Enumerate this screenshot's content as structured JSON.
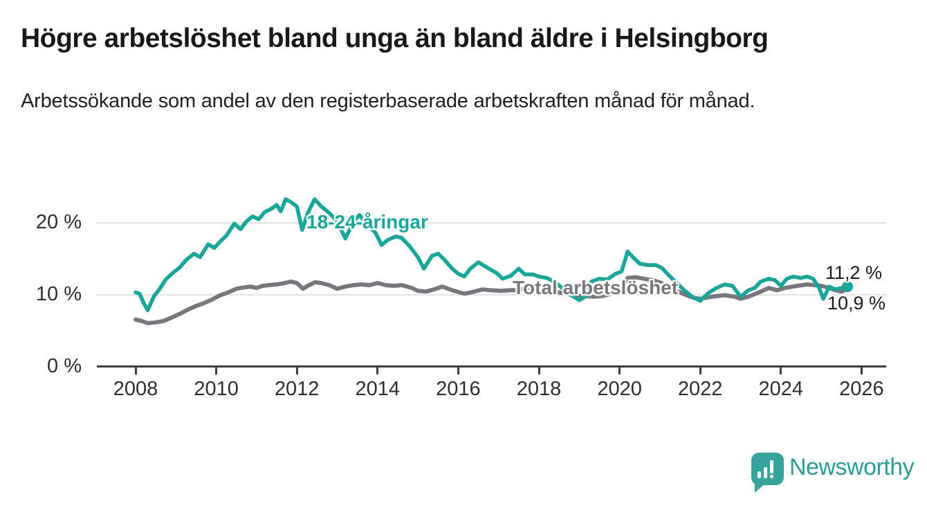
{
  "title": "Högre arbetslöshet bland unga än bland äldre i Helsingborg",
  "subtitle": "Arbetssökande som andel av den registerbaserade arbetskraften månad för månad.",
  "branding": {
    "name": "Newsworthy",
    "icon": "bar-chart-speech-bubble-icon",
    "color": "#2b9d97"
  },
  "chart_data": {
    "type": "line",
    "title": "Högre arbetslöshet bland unga än bland äldre i Helsingborg",
    "xlabel": "",
    "ylabel": "",
    "x_range": [
      2007.8,
      2026.6
    ],
    "ylim": [
      0,
      25
    ],
    "grid": "horizontal",
    "legend_position": "inline-labels",
    "x_ticks": [
      2008,
      2010,
      2012,
      2014,
      2016,
      2018,
      2020,
      2022,
      2024,
      2026
    ],
    "y_ticks": [
      {
        "value": 0,
        "label": "0 %"
      },
      {
        "value": 10,
        "label": "10 %"
      },
      {
        "value": 20,
        "label": "20 %"
      }
    ],
    "unit": "percent",
    "series": [
      {
        "name": "18-24-åringar",
        "color": "#1aa59a",
        "stroke_width": 5.5,
        "end_dot": true,
        "end_label": "11,2 %",
        "end_value": 11.2,
        "points": [
          [
            2008.0,
            10.4
          ],
          [
            2008.1,
            10.2
          ],
          [
            2008.2,
            8.9
          ],
          [
            2008.3,
            7.9
          ],
          [
            2008.45,
            9.8
          ],
          [
            2008.6,
            10.9
          ],
          [
            2008.75,
            12.2
          ],
          [
            2008.9,
            13.0
          ],
          [
            2009.1,
            13.9
          ],
          [
            2009.25,
            14.9
          ],
          [
            2009.45,
            15.8
          ],
          [
            2009.6,
            15.3
          ],
          [
            2009.8,
            17.1
          ],
          [
            2009.95,
            16.6
          ],
          [
            2010.1,
            17.5
          ],
          [
            2010.25,
            18.3
          ],
          [
            2010.45,
            20.0
          ],
          [
            2010.6,
            19.2
          ],
          [
            2010.75,
            20.3
          ],
          [
            2010.9,
            21.0
          ],
          [
            2011.05,
            20.6
          ],
          [
            2011.2,
            21.6
          ],
          [
            2011.35,
            22.0
          ],
          [
            2011.5,
            22.6
          ],
          [
            2011.6,
            21.7
          ],
          [
            2011.72,
            23.4
          ],
          [
            2011.85,
            23.0
          ],
          [
            2012.0,
            22.4
          ],
          [
            2012.13,
            19.1
          ],
          [
            2012.28,
            21.6
          ],
          [
            2012.44,
            23.4
          ],
          [
            2012.6,
            22.4
          ],
          [
            2012.8,
            21.5
          ],
          [
            2013.0,
            20.3
          ],
          [
            2013.2,
            17.9
          ],
          [
            2013.4,
            20.2
          ],
          [
            2013.55,
            21.2
          ],
          [
            2013.75,
            19.8
          ],
          [
            2013.95,
            18.7
          ],
          [
            2014.1,
            17.0
          ],
          [
            2014.25,
            17.7
          ],
          [
            2014.45,
            18.2
          ],
          [
            2014.6,
            18.0
          ],
          [
            2014.8,
            16.8
          ],
          [
            2015.0,
            15.3
          ],
          [
            2015.15,
            13.7
          ],
          [
            2015.35,
            15.5
          ],
          [
            2015.5,
            15.8
          ],
          [
            2015.65,
            15.0
          ],
          [
            2015.85,
            13.7
          ],
          [
            2016.0,
            13.0
          ],
          [
            2016.15,
            12.6
          ],
          [
            2016.3,
            13.7
          ],
          [
            2016.5,
            14.6
          ],
          [
            2016.7,
            13.9
          ],
          [
            2016.95,
            13.1
          ],
          [
            2017.1,
            12.3
          ],
          [
            2017.3,
            12.7
          ],
          [
            2017.5,
            13.7
          ],
          [
            2017.65,
            12.9
          ],
          [
            2017.85,
            12.9
          ],
          [
            2018.0,
            12.6
          ],
          [
            2018.2,
            12.4
          ],
          [
            2018.4,
            11.8
          ],
          [
            2018.6,
            10.9
          ],
          [
            2018.8,
            10.0
          ],
          [
            2019.0,
            9.3
          ],
          [
            2019.15,
            9.8
          ],
          [
            2019.3,
            11.9
          ],
          [
            2019.5,
            12.3
          ],
          [
            2019.7,
            12.2
          ],
          [
            2019.9,
            13.0
          ],
          [
            2020.05,
            13.3
          ],
          [
            2020.2,
            16.1
          ],
          [
            2020.35,
            15.2
          ],
          [
            2020.5,
            14.4
          ],
          [
            2020.7,
            14.2
          ],
          [
            2020.9,
            14.2
          ],
          [
            2021.05,
            13.8
          ],
          [
            2021.2,
            12.9
          ],
          [
            2021.4,
            11.8
          ],
          [
            2021.6,
            10.7
          ],
          [
            2021.8,
            9.8
          ],
          [
            2022.0,
            9.2
          ],
          [
            2022.2,
            10.3
          ],
          [
            2022.4,
            11.0
          ],
          [
            2022.6,
            11.5
          ],
          [
            2022.8,
            11.3
          ],
          [
            2023.0,
            9.8
          ],
          [
            2023.2,
            10.7
          ],
          [
            2023.35,
            11.0
          ],
          [
            2023.5,
            11.9
          ],
          [
            2023.7,
            12.3
          ],
          [
            2023.85,
            12.1
          ],
          [
            2024.0,
            11.3
          ],
          [
            2024.15,
            12.3
          ],
          [
            2024.3,
            12.6
          ],
          [
            2024.5,
            12.4
          ],
          [
            2024.65,
            12.6
          ],
          [
            2024.8,
            12.3
          ],
          [
            2024.95,
            11.0
          ],
          [
            2025.05,
            9.5
          ],
          [
            2025.2,
            11.2
          ],
          [
            2025.35,
            10.8
          ],
          [
            2025.5,
            11.0
          ],
          [
            2025.65,
            11.2
          ]
        ]
      },
      {
        "name": "Total arbetslöshet",
        "color": "#77777d",
        "stroke_width": 6,
        "end_dot": false,
        "end_label": "10,9 %",
        "end_value": 10.9,
        "points": [
          [
            2008.0,
            6.6
          ],
          [
            2008.15,
            6.4
          ],
          [
            2008.3,
            6.1
          ],
          [
            2008.5,
            6.2
          ],
          [
            2008.7,
            6.4
          ],
          [
            2008.9,
            6.9
          ],
          [
            2009.1,
            7.4
          ],
          [
            2009.3,
            8.0
          ],
          [
            2009.5,
            8.5
          ],
          [
            2009.7,
            8.9
          ],
          [
            2009.9,
            9.4
          ],
          [
            2010.1,
            10.0
          ],
          [
            2010.3,
            10.4
          ],
          [
            2010.5,
            10.9
          ],
          [
            2010.7,
            11.1
          ],
          [
            2010.85,
            11.2
          ],
          [
            2011.0,
            11.0
          ],
          [
            2011.15,
            11.3
          ],
          [
            2011.3,
            11.4
          ],
          [
            2011.5,
            11.5
          ],
          [
            2011.7,
            11.7
          ],
          [
            2011.85,
            11.9
          ],
          [
            2012.0,
            11.7
          ],
          [
            2012.15,
            10.9
          ],
          [
            2012.3,
            11.4
          ],
          [
            2012.45,
            11.8
          ],
          [
            2012.6,
            11.7
          ],
          [
            2012.8,
            11.4
          ],
          [
            2013.0,
            10.9
          ],
          [
            2013.2,
            11.2
          ],
          [
            2013.4,
            11.4
          ],
          [
            2013.6,
            11.5
          ],
          [
            2013.8,
            11.4
          ],
          [
            2014.0,
            11.7
          ],
          [
            2014.2,
            11.4
          ],
          [
            2014.4,
            11.3
          ],
          [
            2014.6,
            11.4
          ],
          [
            2014.85,
            11.0
          ],
          [
            2015.0,
            10.6
          ],
          [
            2015.2,
            10.5
          ],
          [
            2015.4,
            10.8
          ],
          [
            2015.6,
            11.2
          ],
          [
            2015.85,
            10.7
          ],
          [
            2016.15,
            10.2
          ],
          [
            2016.4,
            10.5
          ],
          [
            2016.6,
            10.8
          ],
          [
            2016.8,
            10.7
          ],
          [
            2017.05,
            10.6
          ],
          [
            2017.3,
            10.7
          ],
          [
            2017.5,
            10.7
          ],
          [
            2017.7,
            11.0
          ],
          [
            2017.9,
            10.8
          ],
          [
            2018.1,
            10.7
          ],
          [
            2018.35,
            10.5
          ],
          [
            2018.6,
            10.3
          ],
          [
            2018.85,
            10.0
          ],
          [
            2019.1,
            9.9
          ],
          [
            2019.35,
            9.8
          ],
          [
            2019.6,
            9.9
          ],
          [
            2019.85,
            10.3
          ],
          [
            2020.05,
            10.9
          ],
          [
            2020.2,
            12.4
          ],
          [
            2020.4,
            12.5
          ],
          [
            2020.6,
            12.3
          ],
          [
            2020.8,
            12.1
          ],
          [
            2021.0,
            11.8
          ],
          [
            2021.2,
            11.2
          ],
          [
            2021.45,
            10.5
          ],
          [
            2021.7,
            9.9
          ],
          [
            2021.85,
            9.6
          ],
          [
            2022.0,
            9.5
          ],
          [
            2022.3,
            9.8
          ],
          [
            2022.6,
            10.0
          ],
          [
            2022.85,
            9.8
          ],
          [
            2023.0,
            9.5
          ],
          [
            2023.2,
            9.8
          ],
          [
            2023.5,
            10.5
          ],
          [
            2023.7,
            11.0
          ],
          [
            2023.9,
            10.7
          ],
          [
            2024.1,
            11.0
          ],
          [
            2024.4,
            11.3
          ],
          [
            2024.65,
            11.5
          ],
          [
            2024.85,
            11.4
          ],
          [
            2025.0,
            11.3
          ],
          [
            2025.2,
            11.0
          ],
          [
            2025.35,
            10.7
          ],
          [
            2025.5,
            10.5
          ],
          [
            2025.65,
            10.9
          ]
        ]
      }
    ]
  }
}
